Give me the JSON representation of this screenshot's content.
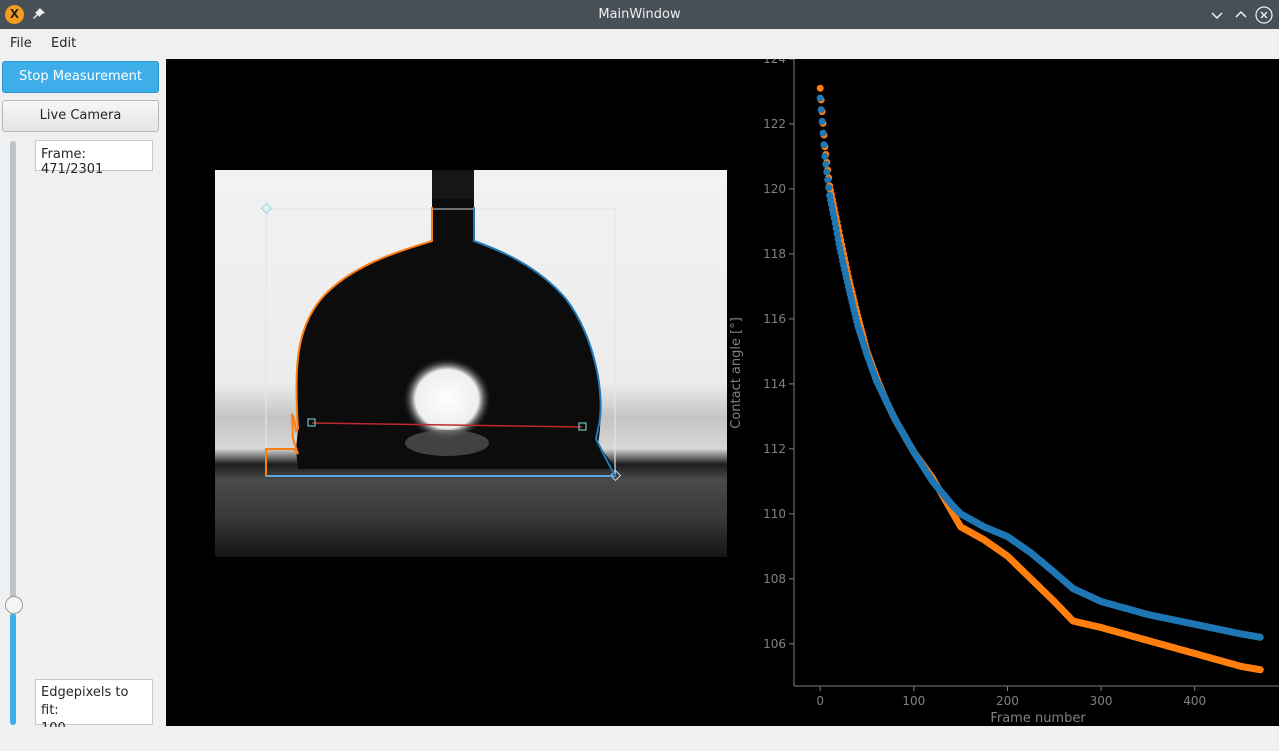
{
  "window": {
    "title": "MainWindow",
    "app_icon_letter": "X"
  },
  "menu": {
    "file": "File",
    "edit": "Edit"
  },
  "controls": {
    "stop_label": "Stop Measurement",
    "live_label": "Live Camera",
    "frame_label": "Frame: 471/2301",
    "edge_label": "Edgepixels to fit:",
    "edge_value": "100",
    "slider_position_fraction": 0.205
  },
  "colors": {
    "accent": "#3daee9",
    "titlebar": "#475057",
    "left_series": "#ff7f0e",
    "right_series": "#1f77b4"
  },
  "chart_data": {
    "type": "scatter",
    "xlabel": "Frame number",
    "ylabel": "Contact angle [°]",
    "xlim": [
      -28,
      490
    ],
    "ylim": [
      104.7,
      124
    ],
    "x_ticks": [
      0,
      100,
      200,
      300,
      400
    ],
    "y_ticks": [
      106,
      108,
      110,
      112,
      114,
      116,
      118,
      120,
      122,
      124
    ],
    "grid": false,
    "legend": "none",
    "series": [
      {
        "color": "#ff7f0e",
        "x": [
          0,
          5,
          10,
          15,
          20,
          30,
          40,
          50,
          60,
          70,
          80,
          100,
          120,
          140,
          150,
          175,
          200,
          225,
          250,
          270,
          300,
          350,
          400,
          450,
          470
        ],
        "y": [
          123.1,
          121.3,
          120.1,
          119.4,
          118.7,
          117.3,
          116.1,
          115.0,
          114.2,
          113.5,
          112.9,
          111.9,
          111.1,
          110.1,
          109.6,
          109.2,
          108.7,
          108.0,
          107.3,
          106.7,
          106.5,
          106.1,
          105.7,
          105.3,
          105.2
        ]
      },
      {
        "color": "#1f77b4",
        "x": [
          0,
          5,
          10,
          15,
          20,
          30,
          40,
          50,
          60,
          70,
          80,
          100,
          120,
          140,
          150,
          175,
          200,
          225,
          250,
          270,
          300,
          350,
          400,
          450,
          470
        ],
        "y": [
          122.8,
          121.0,
          119.8,
          119.1,
          118.3,
          117.0,
          115.8,
          114.9,
          114.1,
          113.5,
          112.9,
          111.9,
          111.0,
          110.3,
          110.0,
          109.6,
          109.3,
          108.8,
          108.2,
          107.7,
          107.3,
          106.9,
          106.6,
          106.3,
          106.2
        ]
      }
    ]
  }
}
